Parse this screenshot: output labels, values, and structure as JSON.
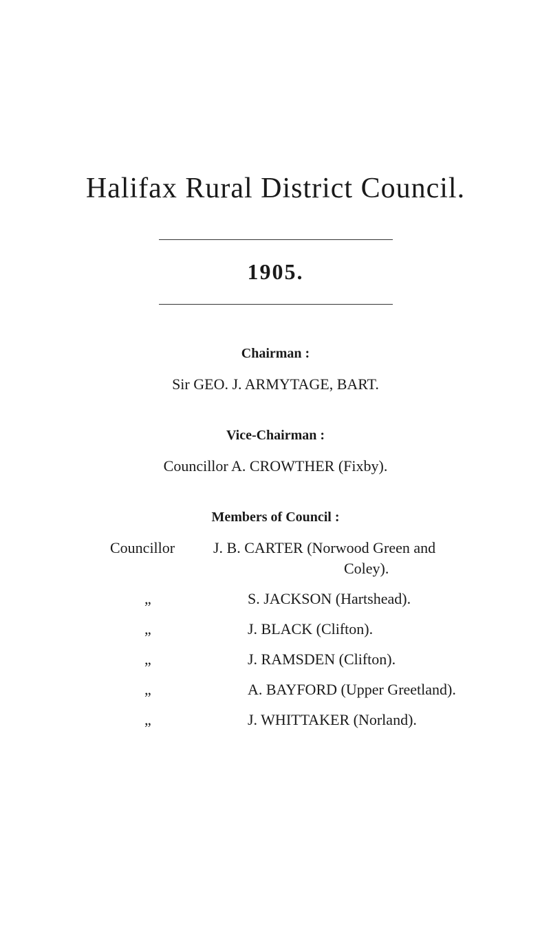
{
  "title": "Halifax Rural District Council.",
  "year": "1905.",
  "chairman": {
    "label": "Chairman :",
    "name": "Sir GEO. J. ARMYTAGE, BART."
  },
  "vice_chairman": {
    "label": "Vice-Chairman :",
    "name": "Councillor A. CROWTHER (Fixby)."
  },
  "members": {
    "label": "Members of Council :",
    "prefix": "Councillor",
    "ditto": "„",
    "first": "J. B. CARTER (Norwood Green and",
    "first_cont": "Coley).",
    "list": [
      "S. JACKSON (Hartshead).",
      "J. BLACK (Clifton).",
      "J. RAMSDEN (Clifton).",
      "A. BAYFORD (Upper Greetland).",
      "J. WHITTAKER (Norland)."
    ]
  },
  "colors": {
    "background": "#ffffff",
    "text": "#1a1a1a",
    "rule": "#333333"
  },
  "typography": {
    "title_fontsize": 42,
    "year_fontsize": 32,
    "label_fontsize": 20,
    "body_fontsize": 22,
    "font_family": "serif"
  }
}
